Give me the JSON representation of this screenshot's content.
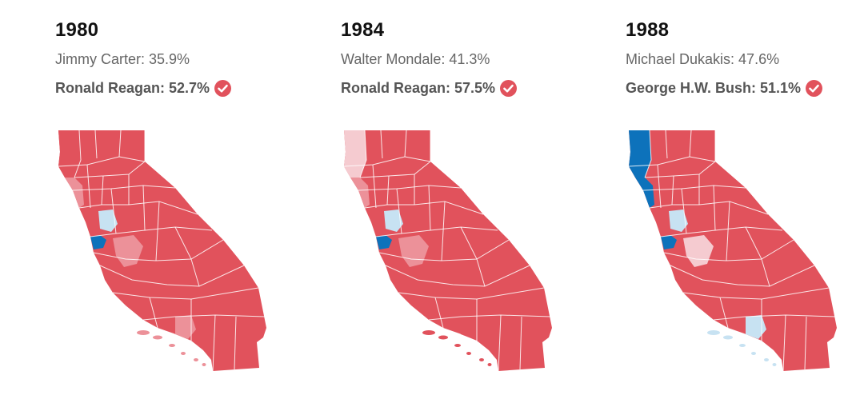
{
  "colors": {
    "rep_strong": "#e1525c",
    "rep_medium": "#ec9199",
    "rep_light": "#f5cbd0",
    "dem_light": "#c7e2f2",
    "dem_strong": "#0d72bb",
    "check": "#e1525c",
    "county_line": "#ffffff"
  },
  "icons": {
    "winner_marker": "check-circle-icon"
  },
  "panels": [
    {
      "year": "1980",
      "loser": "Jimmy Carter: 35.9%",
      "winner": "Ronald Reagan: 52.7%",
      "map": {
        "base": "rep_strong",
        "northwest": "rep_strong",
        "north_coast": "rep_medium",
        "bay_area": "dem_strong",
        "bay_outer": "dem_light",
        "central_valley": "rep_medium",
        "la_region": "rep_medium",
        "islands": "rep_medium"
      }
    },
    {
      "year": "1984",
      "loser": "Walter Mondale: 41.3%",
      "winner": "Ronald Reagan: 57.5%",
      "map": {
        "base": "rep_strong",
        "northwest": "rep_light",
        "north_coast": "rep_medium",
        "bay_area": "dem_strong",
        "bay_outer": "dem_light",
        "central_valley": "rep_medium",
        "la_region": "rep_strong",
        "islands": "rep_strong"
      }
    },
    {
      "year": "1988",
      "loser": "Michael Dukakis: 47.6%",
      "winner": "George H.W. Bush: 51.1%",
      "map": {
        "base": "rep_strong",
        "northwest": "dem_strong",
        "north_coast": "dem_strong",
        "bay_area": "dem_strong",
        "bay_outer": "dem_light",
        "central_valley": "rep_light",
        "la_region": "dem_light",
        "islands": "dem_light"
      }
    }
  ]
}
